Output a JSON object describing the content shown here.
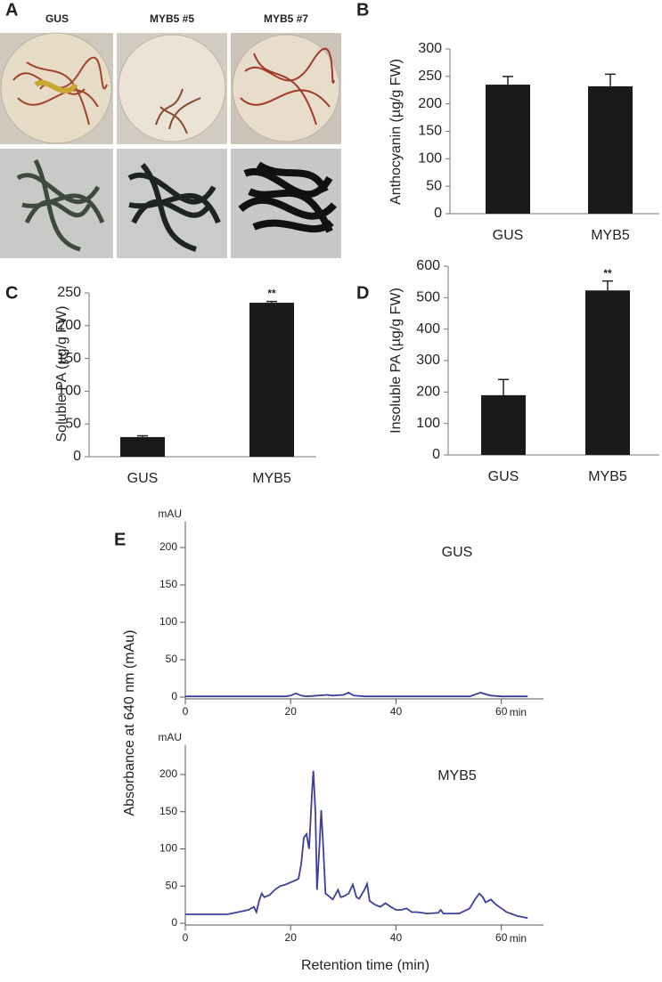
{
  "panel_a": {
    "label": "A",
    "titles": [
      "GUS",
      "MYB5 #5",
      "MYB5 #7"
    ]
  },
  "panel_e": {
    "label": "E",
    "y_label": "Absorbance at 640 nm (mAu)",
    "x_label": "Retention time (min)"
  },
  "chart_data": [
    {
      "type": "bar",
      "panel": "B",
      "y_label": "Anthocyanin (µg/g FW)",
      "categories": [
        "GUS",
        "MYB5"
      ],
      "values": [
        235,
        232
      ],
      "errors": [
        15,
        22
      ],
      "color": "#1a1a1a",
      "ylim": [
        0,
        300
      ],
      "yticks": [
        0,
        50,
        100,
        150,
        200,
        250,
        300
      ]
    },
    {
      "type": "bar",
      "panel": "C",
      "y_label": "Soluble PA (µg/g FW)",
      "categories": [
        "GUS",
        "MYB5"
      ],
      "values": [
        30,
        235
      ],
      "errors": [
        2,
        2
      ],
      "significance": [
        null,
        "**"
      ],
      "color": "#1a1a1a",
      "ylim": [
        0,
        250
      ],
      "yticks": [
        0,
        50,
        100,
        150,
        200,
        250
      ]
    },
    {
      "type": "bar",
      "panel": "D",
      "y_label": "Insoluble PA (µg/g FW)",
      "categories": [
        "GUS",
        "MYB5"
      ],
      "values": [
        190,
        523
      ],
      "errors": [
        50,
        30
      ],
      "significance": [
        null,
        "**"
      ],
      "color": "#1a1a1a",
      "ylim": [
        0,
        600
      ],
      "yticks": [
        0,
        100,
        200,
        300,
        400,
        500,
        600
      ]
    },
    {
      "type": "line",
      "annotation": "GUS",
      "y_unit": "mAU",
      "x_unit": "min",
      "color": "#3b3f9a",
      "xlim": [
        0,
        68
      ],
      "xticks": [
        0,
        20,
        40,
        60
      ],
      "ylim": [
        0,
        235
      ],
      "yticks": [
        0,
        50,
        100,
        150,
        200
      ],
      "x": [
        0,
        5,
        10,
        15,
        19,
        20,
        21,
        22,
        23,
        25,
        27,
        28,
        30,
        31,
        32,
        34,
        40,
        50,
        54,
        56,
        58,
        60,
        65
      ],
      "values": [
        1,
        1,
        1,
        1,
        1,
        2,
        5,
        2,
        1,
        2,
        3,
        2,
        3,
        6,
        2,
        1,
        1,
        1,
        1,
        6,
        2,
        1,
        1
      ]
    },
    {
      "type": "line",
      "annotation": "MYB5",
      "y_unit": "mAU",
      "x_unit": "min",
      "color": "#3b3f9a",
      "xlim": [
        0,
        68
      ],
      "xticks": [
        0,
        20,
        40,
        60
      ],
      "ylim": [
        0,
        240
      ],
      "yticks": [
        0,
        50,
        100,
        150,
        200
      ],
      "x": [
        0,
        5,
        8,
        10,
        12,
        13,
        13.5,
        14,
        14.5,
        15,
        16,
        17,
        18,
        19,
        20,
        21,
        21.5,
        22,
        22.5,
        23,
        23.5,
        24,
        24.3,
        24.7,
        25,
        25.5,
        25.8,
        26.2,
        26.6,
        27,
        28,
        29,
        29.5,
        30,
        31,
        31.8,
        32.5,
        33,
        34,
        34.5,
        35,
        36,
        37,
        38,
        39,
        40,
        41,
        42,
        43,
        44,
        46,
        48,
        48.5,
        49,
        52,
        54,
        55,
        55.8,
        56.5,
        57,
        58,
        59,
        61,
        63,
        65
      ],
      "values": [
        12,
        12,
        12,
        15,
        18,
        22,
        15,
        30,
        40,
        35,
        38,
        45,
        50,
        52,
        55,
        58,
        60,
        80,
        115,
        120,
        100,
        170,
        205,
        150,
        45,
        110,
        152,
        100,
        40,
        38,
        32,
        45,
        35,
        36,
        40,
        52,
        35,
        33,
        45,
        53,
        30,
        25,
        22,
        27,
        22,
        18,
        18,
        20,
        15,
        15,
        13,
        14,
        18,
        13,
        13,
        20,
        32,
        40,
        35,
        28,
        32,
        25,
        15,
        10,
        7
      ]
    }
  ]
}
